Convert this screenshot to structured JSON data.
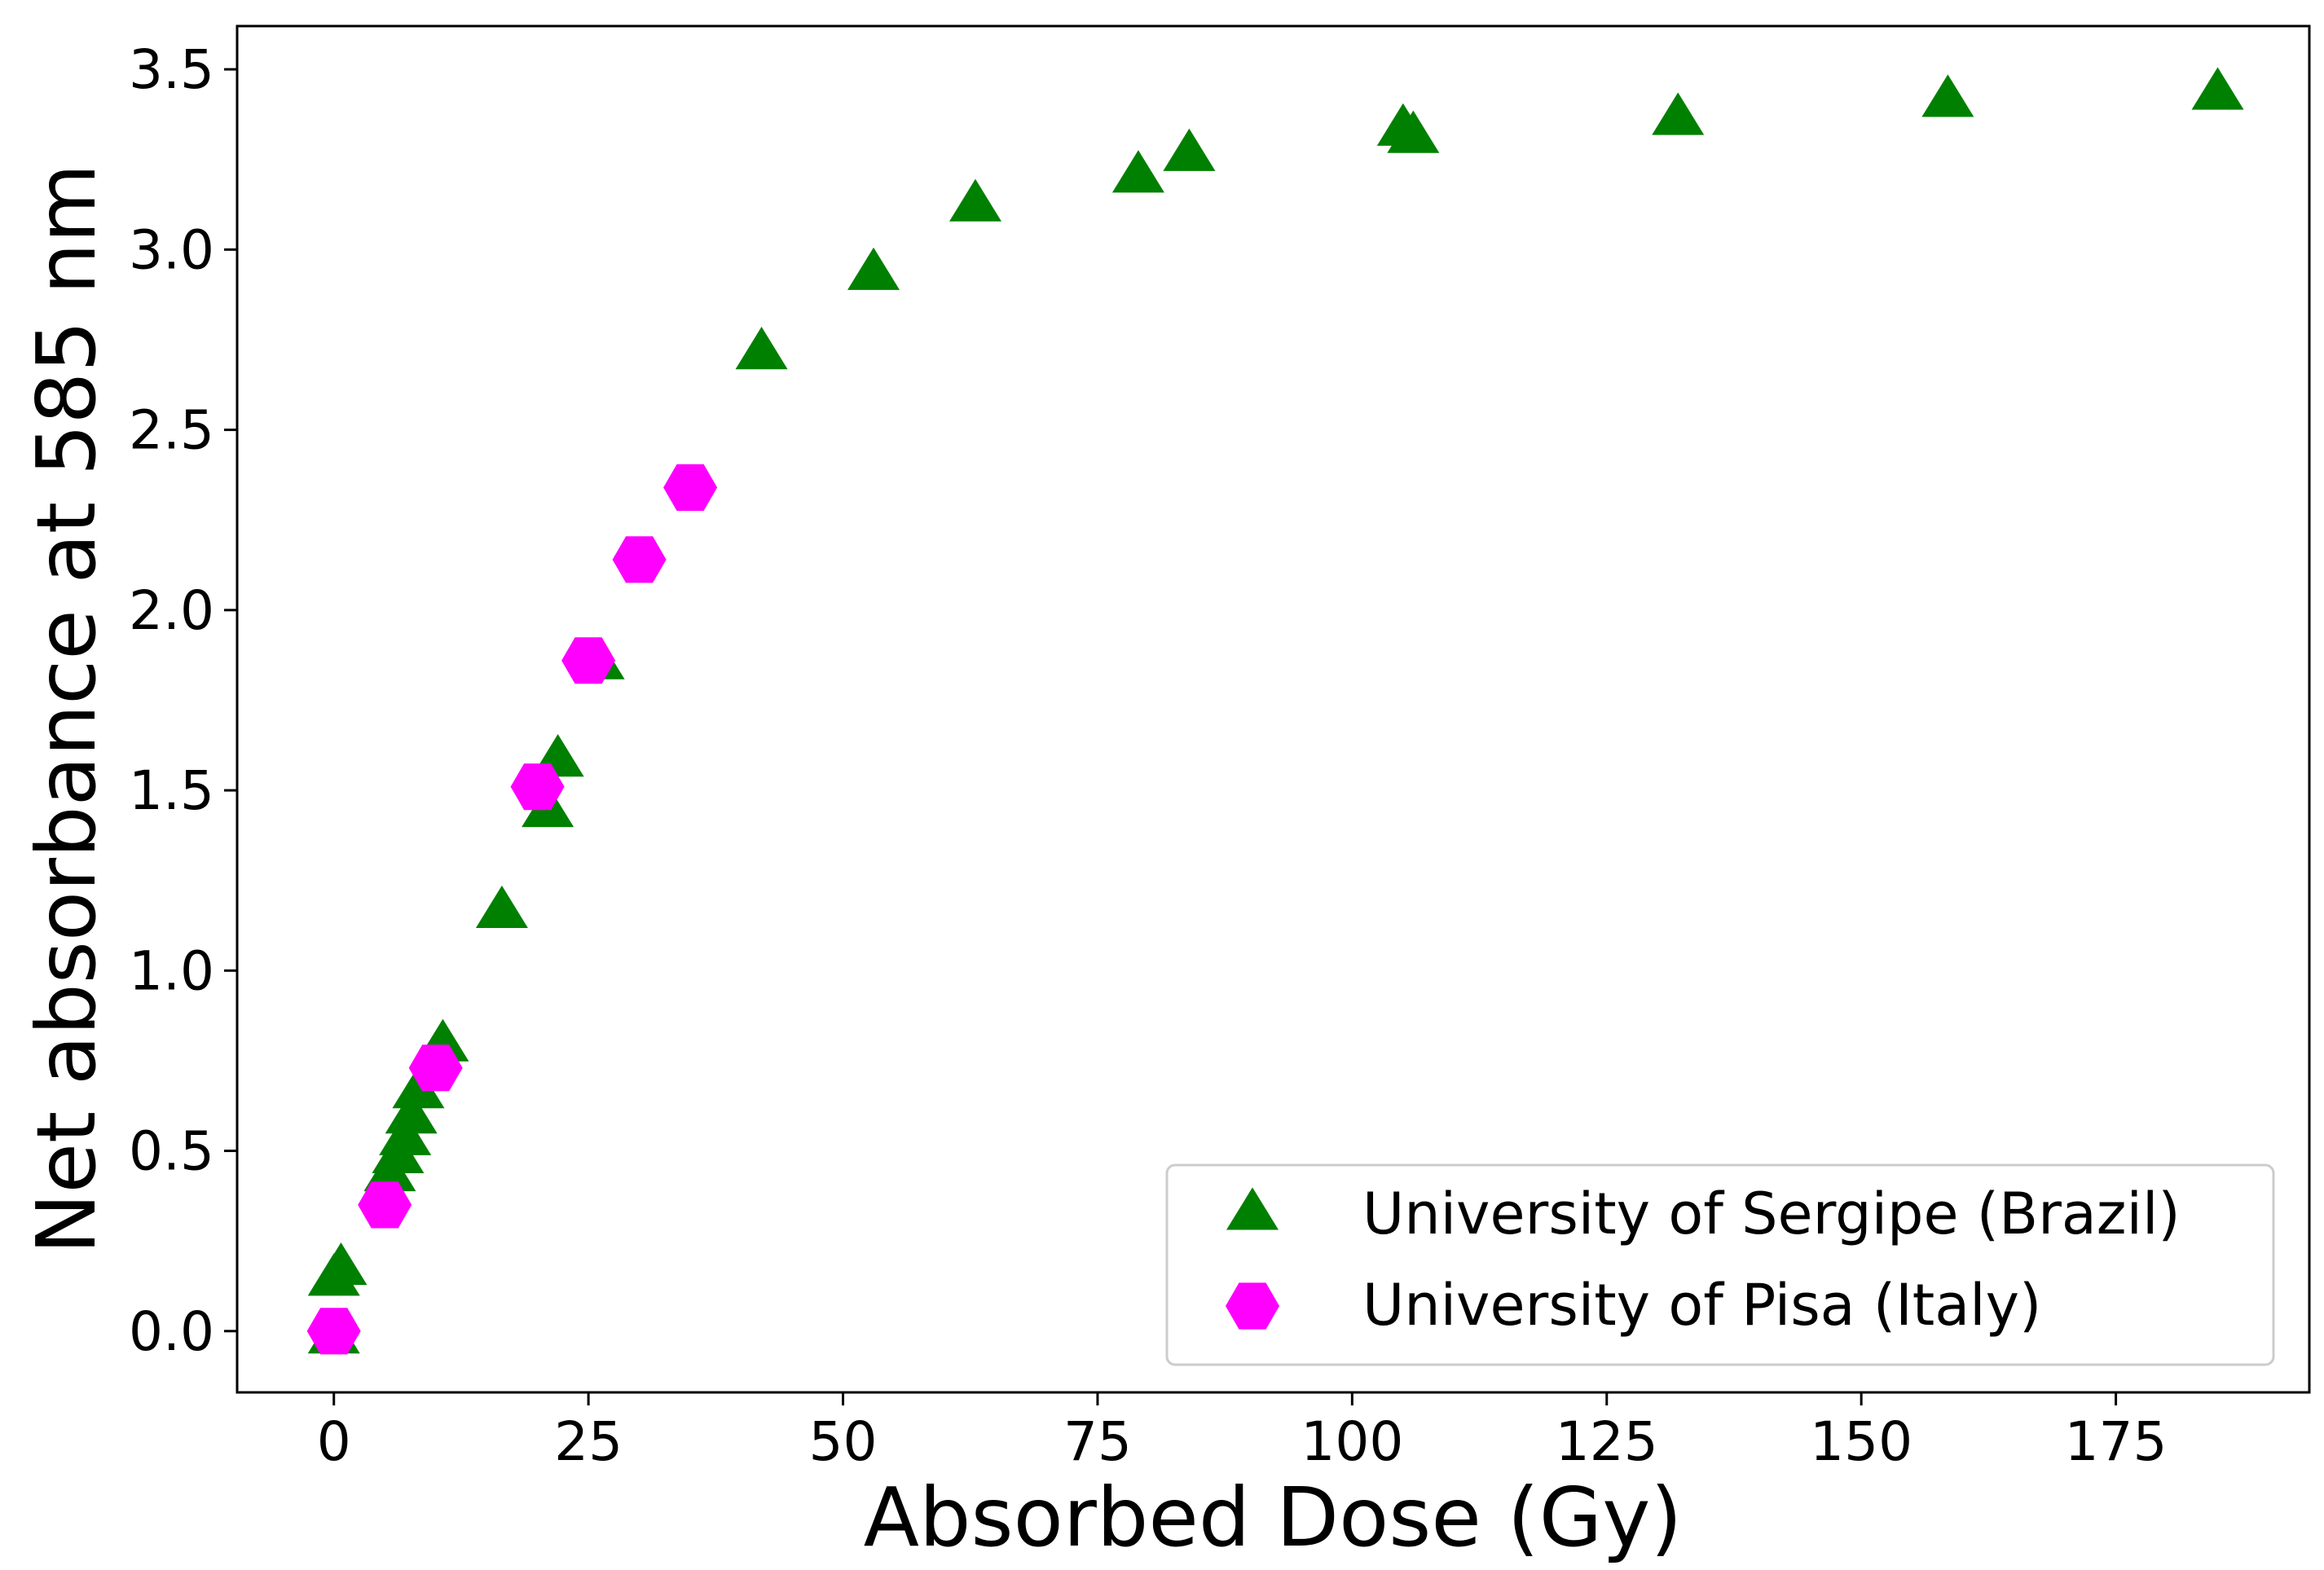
{
  "chart_data": {
    "type": "scatter",
    "title": "",
    "xlabel": "Absorbed Dose (Gy)",
    "ylabel": "Net absorbance at 585 nm",
    "xlim": [
      -9.5,
      194
    ],
    "ylim": [
      -0.17,
      3.62
    ],
    "xticks": [
      0,
      25,
      50,
      75,
      100,
      125,
      150,
      175
    ],
    "xtick_labels": [
      "0",
      "25",
      "50",
      "75",
      "100",
      "125",
      "150",
      "175"
    ],
    "yticks": [
      0.0,
      0.5,
      1.0,
      1.5,
      2.0,
      2.5,
      3.0,
      3.5
    ],
    "ytick_labels": [
      "0.0",
      "0.5",
      "1.0",
      "1.5",
      "2.0",
      "2.5",
      "3.0",
      "3.5"
    ],
    "grid": false,
    "legend_position": "lower-right",
    "series": [
      {
        "name": "University of Sergipe (Brazil)",
        "marker": "triangle",
        "color": "#008000",
        "x": [
          0,
          0,
          0.7,
          5.5,
          6.3,
          7.0,
          7.6,
          8.3,
          10.7,
          16.5,
          21.0,
          22.0,
          26.0,
          42.0,
          53.0,
          63.0,
          79.0,
          84.0,
          105.0,
          106.0,
          132.0,
          158.5,
          185.0
        ],
        "y": [
          -0.02,
          0.14,
          0.17,
          0.43,
          0.48,
          0.53,
          0.59,
          0.66,
          0.79,
          1.16,
          1.44,
          1.58,
          1.85,
          2.71,
          2.93,
          3.12,
          3.2,
          3.26,
          3.33,
          3.31,
          3.36,
          3.41,
          3.43
        ]
      },
      {
        "name": "University of Pisa (Italy)",
        "marker": "hexagon",
        "color": "#ff00ff",
        "x": [
          0,
          5,
          10,
          20,
          25,
          30,
          35
        ],
        "y": [
          0.0,
          0.35,
          0.73,
          1.51,
          1.86,
          2.14,
          2.34
        ]
      }
    ]
  }
}
